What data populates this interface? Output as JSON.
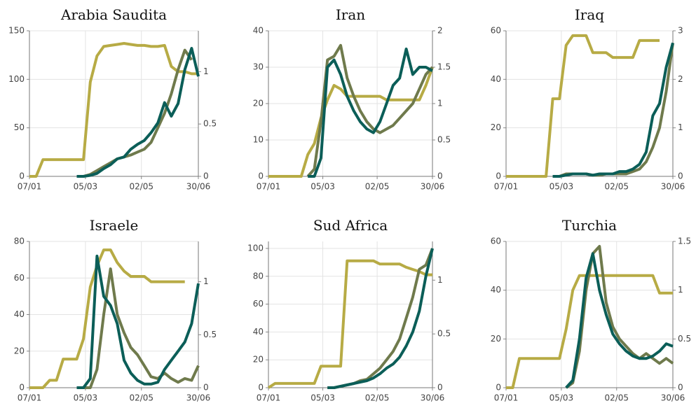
{
  "chart_data": [
    {
      "type": "line",
      "title": "Arabia Saudita",
      "x": [
        "07/01",
        "14/01",
        "21/01",
        "28/01",
        "04/02",
        "11/02",
        "18/02",
        "25/02",
        "03/03",
        "10/03",
        "17/03",
        "24/03",
        "31/03",
        "07/04",
        "14/04",
        "21/04",
        "28/04",
        "05/05",
        "12/05",
        "19/05",
        "26/05",
        "02/06",
        "09/06",
        "16/06",
        "23/06",
        "30/06"
      ],
      "xlim": [
        "07/01",
        "30/06"
      ],
      "xticks": [
        "07/01",
        "05/03",
        "02/05",
        "30/06"
      ],
      "ylim": [
        0,
        150
      ],
      "yticks": [
        0,
        50,
        100,
        150
      ],
      "y2lim": [
        0,
        1.39
      ],
      "y2ticks": [
        0,
        0.5,
        1
      ],
      "grid": true,
      "series": [
        {
          "color": "#b7ab45",
          "axis": "y2",
          "values": [
            0,
            0,
            0.16,
            0.16,
            0.16,
            0.16,
            0.16,
            0.16,
            0.16,
            0.9,
            1.15,
            1.24,
            1.25,
            1.26,
            1.27,
            1.26,
            1.25,
            1.25,
            1.24,
            1.24,
            1.25,
            1.05,
            1.0,
            1.0,
            0.98,
            0.98
          ]
        },
        {
          "color": "#6f7a4c",
          "values": [
            null,
            null,
            null,
            null,
            null,
            null,
            null,
            0,
            0,
            2,
            6,
            10,
            14,
            18,
            20,
            22,
            25,
            28,
            35,
            50,
            65,
            85,
            110,
            130,
            120,
            null
          ]
        },
        {
          "color": "#0b5e58",
          "values": [
            null,
            null,
            null,
            null,
            null,
            null,
            null,
            0,
            0,
            1,
            3,
            8,
            12,
            18,
            20,
            28,
            33,
            37,
            45,
            55,
            76,
            62,
            75,
            110,
            132,
            103
          ]
        }
      ]
    },
    {
      "type": "line",
      "title": "Iran",
      "x": [
        "07/01",
        "14/01",
        "21/01",
        "28/01",
        "04/02",
        "11/02",
        "18/02",
        "25/02",
        "03/03",
        "10/03",
        "17/03",
        "24/03",
        "31/03",
        "07/04",
        "14/04",
        "21/04",
        "28/04",
        "05/05",
        "12/05",
        "19/05",
        "26/05",
        "02/06",
        "09/06",
        "16/06",
        "23/06",
        "30/06"
      ],
      "xlim": [
        "07/01",
        "30/06"
      ],
      "xticks": [
        "07/01",
        "05/03",
        "02/05",
        "30/06"
      ],
      "ylim": [
        0,
        40
      ],
      "yticks": [
        0,
        10,
        20,
        30,
        40
      ],
      "y2lim": [
        0,
        2
      ],
      "y2ticks": [
        0,
        0.5,
        1,
        1.5,
        2
      ],
      "grid": true,
      "series": [
        {
          "color": "#b7ab45",
          "axis": "y2",
          "values": [
            0,
            0,
            0,
            0,
            0,
            0,
            0.3,
            0.45,
            0.8,
            1.05,
            1.25,
            1.2,
            1.1,
            1.1,
            1.1,
            1.1,
            1.1,
            1.1,
            1.05,
            1.05,
            1.05,
            1.05,
            1.05,
            1.05,
            1.25,
            1.5
          ]
        },
        {
          "color": "#6f7a4c",
          "values": [
            null,
            null,
            null,
            null,
            null,
            null,
            0,
            2,
            15,
            32,
            33,
            36,
            27,
            22,
            18,
            15,
            13,
            12,
            13,
            14,
            16,
            18,
            20,
            24,
            28,
            30
          ]
        },
        {
          "color": "#0b5e58",
          "values": [
            null,
            null,
            null,
            null,
            null,
            null,
            0,
            0,
            5,
            30,
            32,
            28,
            22,
            18,
            15,
            13,
            12,
            15,
            20,
            25,
            27,
            35,
            28,
            30,
            30,
            29
          ]
        }
      ]
    },
    {
      "type": "line",
      "title": "Iraq",
      "x": [
        "07/01",
        "14/01",
        "21/01",
        "28/01",
        "04/02",
        "11/02",
        "18/02",
        "25/02",
        "03/03",
        "10/03",
        "17/03",
        "24/03",
        "31/03",
        "07/04",
        "14/04",
        "21/04",
        "28/04",
        "05/05",
        "12/05",
        "19/05",
        "26/05",
        "02/06",
        "09/06",
        "16/06",
        "23/06",
        "30/06"
      ],
      "xlim": [
        "07/01",
        "30/06"
      ],
      "xticks": [
        "07/01",
        "05/03",
        "02/05",
        "30/06"
      ],
      "ylim": [
        0,
        60
      ],
      "yticks": [
        0,
        20,
        40,
        60
      ],
      "y2lim": [
        0,
        3
      ],
      "y2ticks": [
        0,
        1,
        2,
        3
      ],
      "grid": true,
      "series": [
        {
          "color": "#b7ab45",
          "axis": "y2",
          "values": [
            0,
            0,
            0,
            0,
            0,
            0,
            0,
            1.6,
            1.6,
            2.7,
            2.9,
            2.9,
            2.9,
            2.55,
            2.55,
            2.55,
            2.45,
            2.45,
            2.45,
            2.45,
            2.8,
            2.8,
            2.8,
            2.8,
            null,
            null
          ]
        },
        {
          "color": "#6f7a4c",
          "values": [
            null,
            null,
            null,
            null,
            null,
            null,
            null,
            0,
            0,
            1,
            1,
            1,
            1,
            0.5,
            0.5,
            1,
            1,
            1,
            1,
            2,
            3,
            6,
            12,
            20,
            35,
            55
          ]
        },
        {
          "color": "#0b5e58",
          "values": [
            null,
            null,
            null,
            null,
            null,
            null,
            null,
            0,
            0,
            0.5,
            1,
            1,
            1,
            0.5,
            1,
            1,
            1,
            2,
            2,
            3,
            5,
            10,
            25,
            30,
            45,
            55
          ]
        }
      ]
    },
    {
      "type": "line",
      "title": "Israele",
      "x": [
        "07/01",
        "14/01",
        "21/01",
        "28/01",
        "04/02",
        "11/02",
        "18/02",
        "25/02",
        "03/03",
        "10/03",
        "17/03",
        "24/03",
        "31/03",
        "07/04",
        "14/04",
        "21/04",
        "28/04",
        "05/05",
        "12/05",
        "19/05",
        "26/05",
        "02/06",
        "09/06",
        "16/06",
        "23/06",
        "30/06"
      ],
      "xlim": [
        "07/01",
        "30/06"
      ],
      "xticks": [
        "07/01",
        "05/03",
        "02/05",
        "30/06"
      ],
      "ylim": [
        0,
        80
      ],
      "yticks": [
        0,
        20,
        40,
        60,
        80
      ],
      "y2lim": [
        0,
        1.38
      ],
      "y2ticks": [
        0,
        0.5,
        1
      ],
      "grid": true,
      "series": [
        {
          "color": "#b7ab45",
          "axis": "y2",
          "values": [
            0,
            0,
            0,
            0.07,
            0.07,
            0.27,
            0.27,
            0.27,
            0.46,
            0.95,
            1.15,
            1.3,
            1.3,
            1.18,
            1.1,
            1.05,
            1.05,
            1.05,
            1.0,
            1.0,
            1.0,
            1.0,
            1.0,
            1.0,
            null,
            null
          ]
        },
        {
          "color": "#6f7a4c",
          "values": [
            null,
            null,
            null,
            null,
            null,
            null,
            null,
            0,
            0,
            0,
            10,
            40,
            65,
            40,
            30,
            22,
            18,
            12,
            6,
            5,
            8,
            5,
            3,
            5,
            4,
            12
          ]
        },
        {
          "color": "#0b5e58",
          "values": [
            null,
            null,
            null,
            null,
            null,
            null,
            null,
            0,
            0,
            5,
            72,
            50,
            45,
            35,
            15,
            8,
            4,
            2,
            2,
            3,
            10,
            15,
            20,
            25,
            35,
            57
          ]
        }
      ]
    },
    {
      "type": "line",
      "title": "Sud Africa",
      "x": [
        "07/01",
        "14/01",
        "21/01",
        "28/01",
        "04/02",
        "11/02",
        "18/02",
        "25/02",
        "03/03",
        "10/03",
        "17/03",
        "24/03",
        "31/03",
        "07/04",
        "14/04",
        "21/04",
        "28/04",
        "05/05",
        "12/05",
        "19/05",
        "26/05",
        "02/06",
        "09/06",
        "16/06",
        "23/06",
        "30/06"
      ],
      "xlim": [
        "07/01",
        "30/06"
      ],
      "xticks": [
        "07/01",
        "05/03",
        "02/05",
        "30/06"
      ],
      "ylim": [
        0,
        105
      ],
      "yticks": [
        0,
        20,
        40,
        60,
        80,
        100
      ],
      "y2lim": [
        0,
        1.36
      ],
      "y2ticks": [
        0,
        0.5,
        1
      ],
      "grid": true,
      "series": [
        {
          "color": "#b7ab45",
          "axis": "y2",
          "values": [
            0,
            0.04,
            0.04,
            0.04,
            0.04,
            0.04,
            0.04,
            0.04,
            0.2,
            0.2,
            0.2,
            0.2,
            1.18,
            1.18,
            1.18,
            1.18,
            1.18,
            1.15,
            1.15,
            1.15,
            1.15,
            1.12,
            1.1,
            1.08,
            1.05,
            1.05
          ]
        },
        {
          "color": "#6f7a4c",
          "values": [
            null,
            null,
            null,
            null,
            null,
            null,
            null,
            null,
            null,
            0,
            0,
            1,
            2,
            3,
            5,
            6,
            10,
            14,
            20,
            26,
            35,
            50,
            65,
            85,
            88,
            100
          ]
        },
        {
          "color": "#0b5e58",
          "values": [
            null,
            null,
            null,
            null,
            null,
            null,
            null,
            null,
            null,
            0,
            0,
            1,
            2,
            3,
            4,
            5,
            7,
            10,
            14,
            17,
            22,
            30,
            40,
            55,
            80,
            100
          ]
        }
      ]
    },
    {
      "type": "line",
      "title": "Turchia",
      "x": [
        "07/01",
        "14/01",
        "21/01",
        "28/01",
        "04/02",
        "11/02",
        "18/02",
        "25/02",
        "03/03",
        "10/03",
        "17/03",
        "24/03",
        "31/03",
        "07/04",
        "14/04",
        "21/04",
        "28/04",
        "05/05",
        "12/05",
        "19/05",
        "26/05",
        "02/06",
        "09/06",
        "16/06",
        "23/06",
        "30/06"
      ],
      "xlim": [
        "07/01",
        "30/06"
      ],
      "xticks": [
        "07/01",
        "05/03",
        "02/05",
        "30/06"
      ],
      "ylim": [
        0,
        60
      ],
      "yticks": [
        0,
        20,
        40,
        60
      ],
      "y2lim": [
        0,
        1.5
      ],
      "y2ticks": [
        0,
        0.5,
        1,
        1.5
      ],
      "grid": true,
      "series": [
        {
          "color": "#b7ab45",
          "axis": "y2",
          "values": [
            0,
            0,
            0.3,
            0.3,
            0.3,
            0.3,
            0.3,
            0.3,
            0.3,
            0.6,
            1.0,
            1.15,
            1.15,
            1.15,
            1.15,
            1.15,
            1.15,
            1.15,
            1.15,
            1.15,
            1.15,
            1.15,
            1.15,
            0.97,
            0.97,
            0.97
          ]
        },
        {
          "color": "#6f7a4c",
          "values": [
            null,
            null,
            null,
            null,
            null,
            null,
            null,
            null,
            null,
            0,
            2,
            15,
            40,
            55,
            58,
            35,
            25,
            20,
            17,
            14,
            12,
            14,
            12,
            10,
            12,
            10
          ]
        },
        {
          "color": "#0b5e58",
          "values": [
            null,
            null,
            null,
            null,
            null,
            null,
            null,
            null,
            null,
            0,
            3,
            20,
            45,
            55,
            40,
            30,
            22,
            18,
            15,
            13,
            12,
            12,
            13,
            15,
            18,
            17
          ]
        }
      ]
    }
  ]
}
